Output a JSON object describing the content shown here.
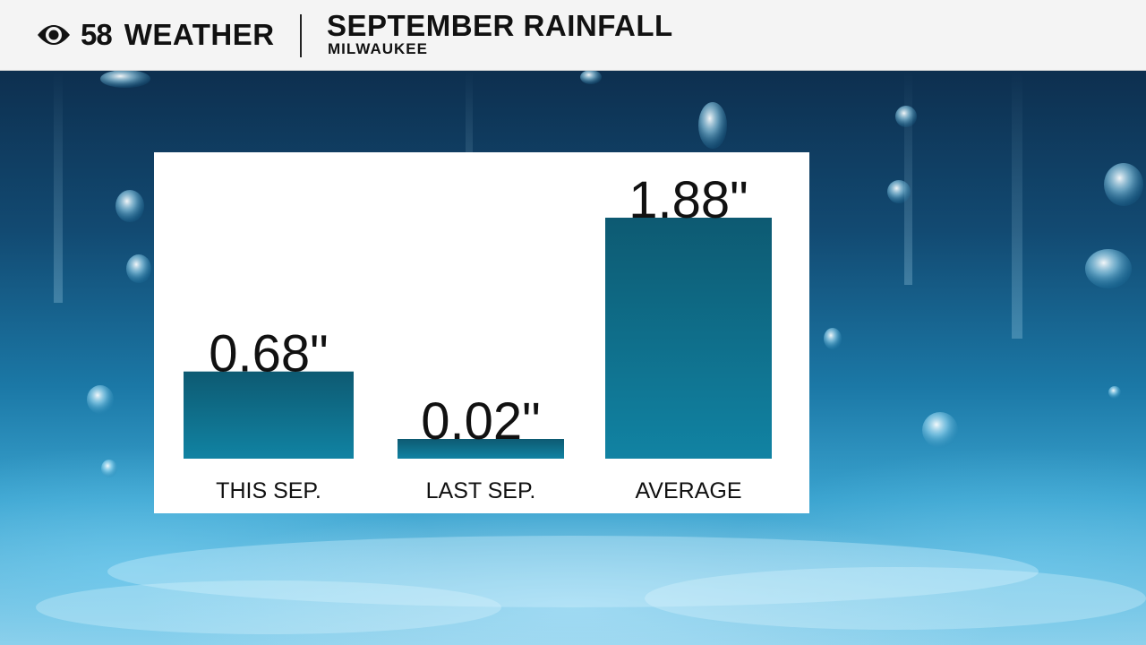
{
  "header": {
    "logo_number": "58",
    "logo_word": "WEATHER",
    "title": "SEPTEMBER RAINFALL",
    "subtitle": "MILWAUKEE"
  },
  "colors": {
    "bar_top": "#0d5a72",
    "bar_bottom": "#1183a3",
    "header_bg": "#f4f4f4",
    "text": "#111111"
  },
  "chart_data": {
    "type": "bar",
    "title": "SEPTEMBER RAINFALL",
    "categories": [
      "THIS SEP.",
      "LAST SEP.",
      "AVERAGE"
    ],
    "values": [
      0.68,
      0.02,
      1.88
    ],
    "value_labels": [
      "0.68\"",
      "0.02\"",
      "1.88\""
    ],
    "unit": "inches",
    "xlabel": "",
    "ylabel": "",
    "grid": false,
    "legend": "none"
  }
}
